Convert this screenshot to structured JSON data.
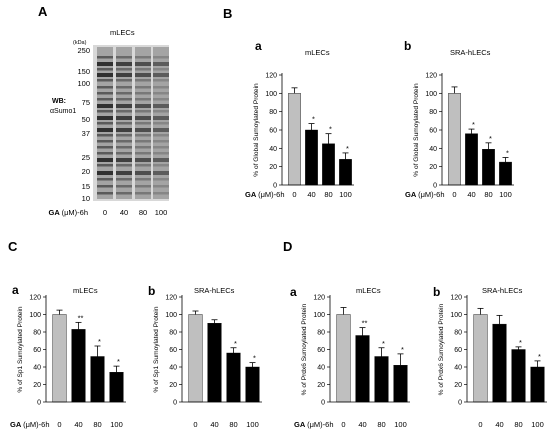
{
  "panels": {
    "A": "A",
    "B": "B",
    "C": "C",
    "D": "D"
  },
  "blot": {
    "title": "mLECs",
    "unit": "(kDa)",
    "markers": [
      "250",
      "150",
      "100",
      "75",
      "50",
      "37",
      "25",
      "20",
      "15",
      "10"
    ],
    "wb_label": "WB:",
    "antibody": "αSumo1",
    "x_prefix": "GA",
    "x_unit": "(μM)-6h",
    "lanes": [
      "0",
      "40",
      "80",
      "100"
    ]
  },
  "colors": {
    "control": "#bfbfbf",
    "treated": "#000000",
    "blot_band": "#2a2a2a"
  },
  "chart_data": [
    {
      "id": "B-a",
      "group": "B",
      "sublabel": "a",
      "type": "bar",
      "title": "mLECs",
      "ylabel": "% of Global  Sumoylated Protein",
      "x_prefix": "GA",
      "x_unit": "(μM)-6h",
      "categories": [
        "0",
        "40",
        "80",
        "100"
      ],
      "values": [
        100,
        60,
        45,
        28
      ],
      "errors": [
        6,
        7,
        11,
        7
      ],
      "significance": [
        "",
        "*",
        "*",
        "*"
      ],
      "ylim": [
        0,
        120
      ],
      "yticks": [
        0,
        20,
        40,
        60,
        80,
        100,
        120
      ]
    },
    {
      "id": "B-b",
      "group": "B",
      "sublabel": "b",
      "type": "bar",
      "title": "SRA-hLECs",
      "ylabel": "% of Global  Sumoylated Protein",
      "x_prefix": "GA",
      "x_unit": "(μM)-6h",
      "categories": [
        "0",
        "40",
        "80",
        "100"
      ],
      "values": [
        100,
        56,
        39,
        25
      ],
      "errors": [
        7,
        5,
        7,
        5
      ],
      "significance": [
        "",
        "*",
        "*",
        "*"
      ],
      "ylim": [
        0,
        120
      ],
      "yticks": [
        0,
        20,
        40,
        60,
        80,
        100,
        120
      ]
    },
    {
      "id": "C-a",
      "group": "C",
      "sublabel": "a",
      "type": "bar",
      "title": "mLECs",
      "ylabel": "% of Sp1 Sumoylated Protein",
      "x_prefix": "GA",
      "x_unit": "(μM)-6h",
      "categories": [
        "0",
        "40",
        "80",
        "100"
      ],
      "values": [
        100,
        83,
        52,
        34
      ],
      "errors": [
        5,
        8,
        12,
        7
      ],
      "significance": [
        "",
        "**",
        "*",
        "*"
      ],
      "ylim": [
        0,
        120
      ],
      "yticks": [
        0,
        20,
        40,
        60,
        80,
        100,
        120
      ]
    },
    {
      "id": "C-b",
      "group": "C",
      "sublabel": "b",
      "type": "bar",
      "title": "SRA-hLECs",
      "ylabel": "% of Sp1 Sumoylated Protein",
      "x_prefix": "GA",
      "x_unit": "(μM)-6h",
      "categories": [
        "0",
        "40",
        "80",
        "100"
      ],
      "values": [
        100,
        90,
        56,
        40
      ],
      "errors": [
        4,
        4,
        6,
        5
      ],
      "significance": [
        "",
        "",
        "*",
        "*"
      ],
      "ylim": [
        0,
        120
      ],
      "yticks": [
        0,
        20,
        40,
        60,
        80,
        100,
        120
      ]
    },
    {
      "id": "D-a",
      "group": "D",
      "sublabel": "a",
      "type": "bar",
      "title": "mLECs",
      "ylabel": "% of Prdx6 Sumoylated Protein",
      "x_prefix": "GA",
      "x_unit": "(μM)-6h",
      "categories": [
        "0",
        "40",
        "80",
        "100"
      ],
      "values": [
        100,
        76,
        52,
        42
      ],
      "errors": [
        8,
        9,
        10,
        13
      ],
      "significance": [
        "",
        "**",
        "*",
        "*"
      ],
      "ylim": [
        0,
        120
      ],
      "yticks": [
        0,
        20,
        40,
        60,
        80,
        100,
        120
      ]
    },
    {
      "id": "D-b",
      "group": "D",
      "sublabel": "b",
      "type": "bar",
      "title": "SRA-hLECs",
      "ylabel": "% of Prdx6 Sumoylated Protein",
      "x_prefix": "GA",
      "x_unit": "(μM)-6h",
      "categories": [
        "0",
        "40",
        "80",
        "100"
      ],
      "values": [
        100,
        89,
        60,
        40
      ],
      "errors": [
        7,
        10,
        3,
        7
      ],
      "significance": [
        "",
        "",
        "*",
        "*"
      ],
      "ylim": [
        0,
        120
      ],
      "yticks": [
        0,
        20,
        40,
        60,
        80,
        100,
        120
      ]
    }
  ]
}
